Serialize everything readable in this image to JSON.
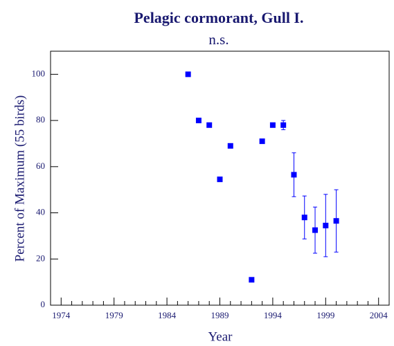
{
  "chart_data": {
    "type": "scatter",
    "title": "Pelagic cormorant, Gull I.",
    "subtitle": "n.s.",
    "xlabel": "Year",
    "ylabel": "Percent of Maximum (55 birds)",
    "x": [
      1986,
      1987,
      1988,
      1989,
      1990,
      1992,
      1993,
      1994,
      1995,
      1996,
      1997,
      1998,
      1999,
      2000
    ],
    "values": [
      100,
      80,
      78,
      54.5,
      69,
      11,
      71,
      78,
      78,
      56.5,
      38,
      32.5,
      34.5,
      36.5
    ],
    "errors": [
      null,
      null,
      null,
      null,
      null,
      null,
      null,
      null,
      2,
      9.5,
      9.3,
      10,
      13.5,
      13.5
    ],
    "color": "#0000ff",
    "xlim": [
      1973,
      2005
    ],
    "xticks": [
      1974,
      1979,
      1984,
      1989,
      1994,
      1999,
      2004
    ],
    "ylim": [
      0,
      110
    ],
    "yticks": [
      0,
      20,
      40,
      60,
      80,
      100
    ]
  }
}
